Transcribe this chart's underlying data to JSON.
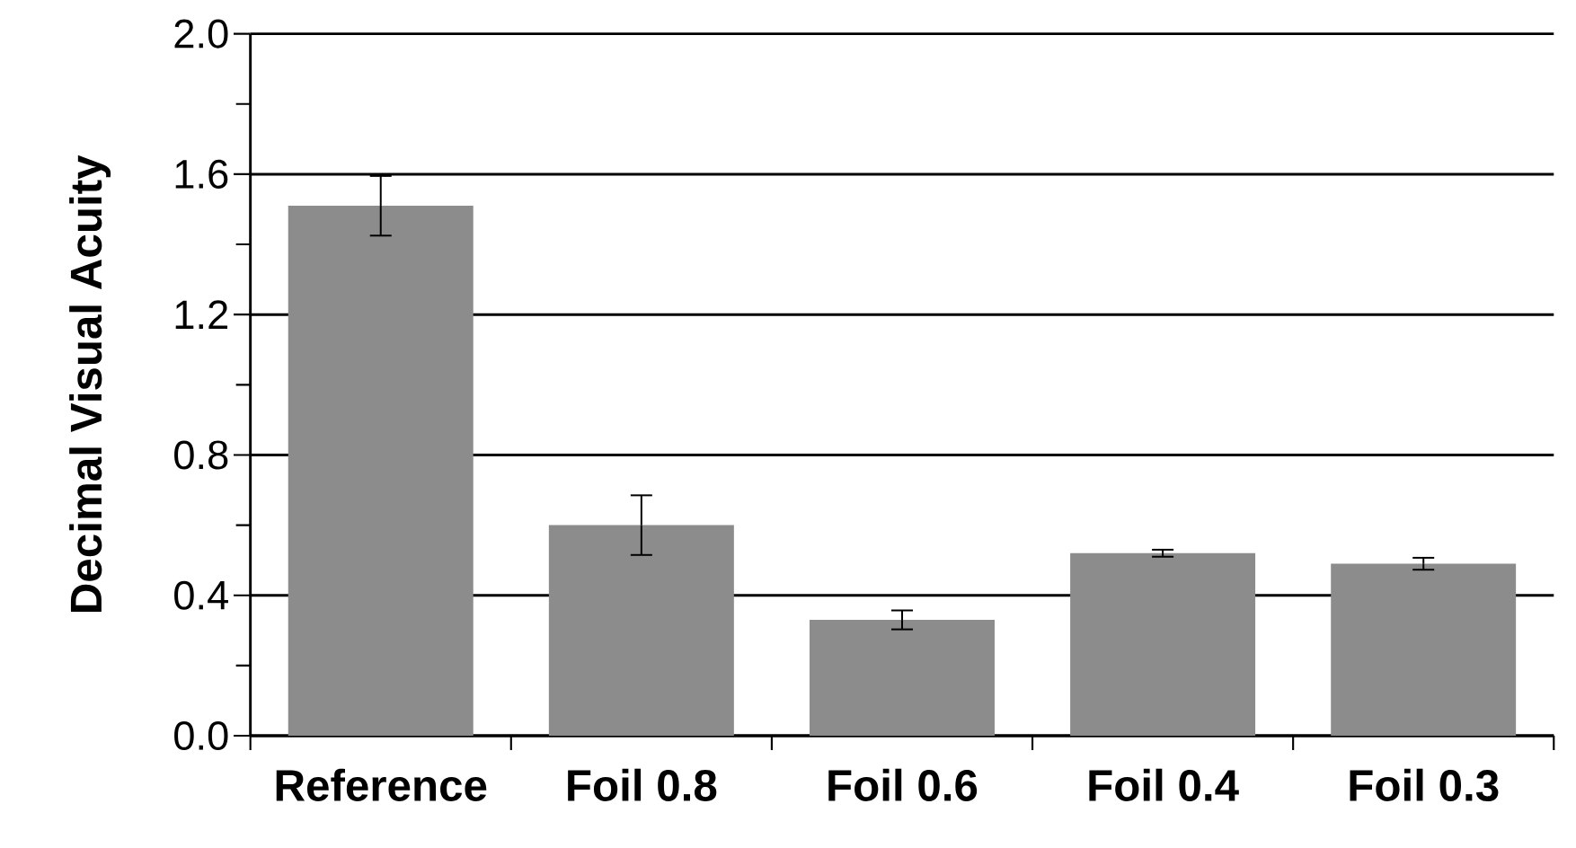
{
  "chart_data": {
    "type": "bar",
    "ylabel": "Decimal Visual Acuity",
    "categories": [
      "Reference",
      "Foil 0.8",
      "Foil 0.6",
      "Foil 0.4",
      "Foil 0.3"
    ],
    "values": [
      1.51,
      0.6,
      0.33,
      0.52,
      0.49
    ],
    "errors": [
      0.085,
      0.085,
      0.027,
      0.01,
      0.017
    ],
    "color": "#8c8c8c",
    "ylim": [
      0,
      2
    ],
    "yticks": [
      {
        "value": 0,
        "label": "0.0"
      },
      {
        "value": 0.4,
        "label": "0.4"
      },
      {
        "value": 0.8,
        "label": "0.8"
      },
      {
        "value": 1.2,
        "label": "1.2"
      },
      {
        "value": 1.6,
        "label": "1.6"
      },
      {
        "value": 2,
        "label": "2.0"
      }
    ],
    "grid": "y"
  }
}
